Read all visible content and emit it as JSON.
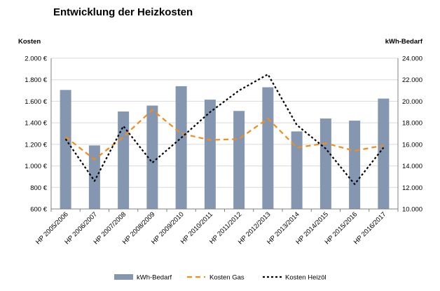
{
  "chart_data": {
    "type": "bar",
    "title": "Entwicklung der Heizkosten",
    "ylabel_left": "Kosten",
    "ylabel_right": "kWh-Bedarf",
    "categories": [
      "HP 2005/2006",
      "HP 2006/2007",
      "HP 2007/2008",
      "HP 2008/2009",
      "HP 2009/2010",
      "HP 2010/2011",
      "HP 2011/2012",
      "HP 2012/2013",
      "HP 2013/2014",
      "HP 2014/2015",
      "HP 2015/2016",
      "HP 2016/2017"
    ],
    "left_axis": {
      "ylim": [
        600,
        2000
      ],
      "ticks": [
        600,
        800,
        1000,
        1200,
        1400,
        1600,
        1800,
        2000
      ],
      "tick_labels": [
        "600 €",
        "800 €",
        "1.000 €",
        "1.200 €",
        "1.400 €",
        "1.600 €",
        "1.800 €",
        "2.000 €"
      ]
    },
    "right_axis": {
      "ylim": [
        10000,
        24000
      ],
      "ticks": [
        10000,
        12000,
        14000,
        16000,
        18000,
        20000,
        22000,
        24000
      ],
      "tick_labels": [
        "10.000",
        "12.000",
        "14.000",
        "16.000",
        "18.000",
        "20.000",
        "22.000",
        "24.000"
      ]
    },
    "series": [
      {
        "name": "kWh-Bedarf",
        "type": "bar",
        "axis": "right",
        "color": "#8496b0",
        "values": [
          21050,
          15900,
          19050,
          19600,
          21400,
          20150,
          19100,
          21300,
          17200,
          18400,
          18200,
          20250
        ]
      },
      {
        "name": "Kosten Gas",
        "type": "line",
        "style": "dashed",
        "axis": "left",
        "color": "#f28c1a",
        "values": [
          1270,
          1060,
          1270,
          1520,
          1300,
          1240,
          1250,
          1440,
          1170,
          1210,
          1140,
          1190
        ]
      },
      {
        "name": "Kosten Heizöl",
        "type": "line",
        "style": "dotted",
        "axis": "left",
        "color": "#000000",
        "values": [
          1250,
          860,
          1370,
          1030,
          1260,
          1500,
          1700,
          1850,
          1380,
          1160,
          830,
          1170
        ]
      }
    ],
    "legend": "bottom",
    "grid": true
  }
}
